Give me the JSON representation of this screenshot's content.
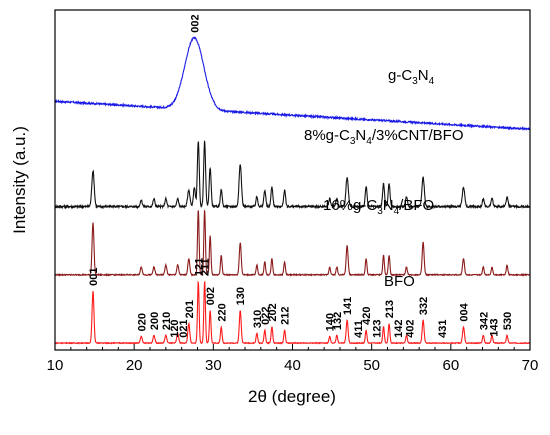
{
  "chart_data": {
    "type": "line",
    "xlabel": "2θ (degree)",
    "ylabel": "Intensity (a.u.)",
    "xlim": [
      10,
      70
    ],
    "x_ticks": [
      10,
      20,
      30,
      40,
      50,
      60,
      70
    ],
    "y_ticks": "none",
    "grid": false,
    "series": [
      {
        "name": "g-C3N4",
        "label_main": "g-C",
        "label_sub1": "3",
        "label_mid": "N",
        "label_sub2": "4",
        "color": "#1a1ae6",
        "offset": 3.2,
        "baseline_start": 0.55,
        "baseline_end": 0.12,
        "noise": 0.025,
        "peaks": [
          [
            27.6,
            1.1,
            1.2
          ]
        ]
      },
      {
        "name": "8%g-C3N4/3%CNT/BFO",
        "label_main": "8%g-C",
        "label_sub1": "3",
        "label_mid": "N",
        "label_sub2": "4",
        "label_tail": "/3%CNT/BFO",
        "color": "#111111",
        "offset": 2.1,
        "baseline_start": 0.03,
        "baseline_end": 0.03,
        "noise": 0.03,
        "peaks": [
          [
            14.8,
            0.55,
            0.15
          ],
          [
            20.9,
            0.1,
            0.12
          ],
          [
            22.5,
            0.12,
            0.12
          ],
          [
            24.0,
            0.12,
            0.12
          ],
          [
            25.5,
            0.12,
            0.12
          ],
          [
            26.9,
            0.25,
            0.15
          ],
          [
            27.6,
            0.3,
            0.12
          ],
          [
            28.1,
            1.0,
            0.12
          ],
          [
            28.9,
            1.0,
            0.12
          ],
          [
            29.6,
            0.6,
            0.12
          ],
          [
            31.0,
            0.25,
            0.12
          ],
          [
            33.4,
            0.65,
            0.15
          ],
          [
            35.5,
            0.15,
            0.12
          ],
          [
            36.5,
            0.25,
            0.12
          ],
          [
            37.4,
            0.3,
            0.12
          ],
          [
            39.0,
            0.25,
            0.12
          ],
          [
            44.7,
            0.12,
            0.12
          ],
          [
            45.6,
            0.12,
            0.12
          ],
          [
            46.9,
            0.45,
            0.15
          ],
          [
            49.3,
            0.3,
            0.12
          ],
          [
            51.5,
            0.35,
            0.12
          ],
          [
            52.2,
            0.35,
            0.12
          ],
          [
            54.4,
            0.15,
            0.12
          ],
          [
            56.5,
            0.45,
            0.15
          ],
          [
            61.6,
            0.3,
            0.15
          ],
          [
            64.1,
            0.12,
            0.12
          ],
          [
            65.2,
            0.12,
            0.12
          ],
          [
            67.1,
            0.15,
            0.12
          ]
        ]
      },
      {
        "name": "16%g-C3N4/BFO",
        "label_main": "16%g-C",
        "label_sub1": "3",
        "label_mid": "N",
        "label_sub2": "4",
        "label_tail": "/BFO",
        "color": "#8b1a1a",
        "offset": 1.05,
        "baseline_start": 0.03,
        "baseline_end": 0.03,
        "noise": 0.015,
        "peaks": [
          [
            14.8,
            0.8,
            0.12
          ],
          [
            20.9,
            0.12,
            0.12
          ],
          [
            22.5,
            0.12,
            0.12
          ],
          [
            24.0,
            0.15,
            0.12
          ],
          [
            25.5,
            0.15,
            0.12
          ],
          [
            26.9,
            0.25,
            0.12
          ],
          [
            28.1,
            1.0,
            0.1
          ],
          [
            28.9,
            1.0,
            0.1
          ],
          [
            29.6,
            0.6,
            0.1
          ],
          [
            31.0,
            0.3,
            0.1
          ],
          [
            33.4,
            0.5,
            0.12
          ],
          [
            35.5,
            0.15,
            0.1
          ],
          [
            36.5,
            0.2,
            0.1
          ],
          [
            37.4,
            0.25,
            0.1
          ],
          [
            39.0,
            0.2,
            0.1
          ],
          [
            44.7,
            0.12,
            0.1
          ],
          [
            45.6,
            0.12,
            0.1
          ],
          [
            46.9,
            0.45,
            0.12
          ],
          [
            49.3,
            0.25,
            0.1
          ],
          [
            51.5,
            0.3,
            0.1
          ],
          [
            52.2,
            0.3,
            0.1
          ],
          [
            54.4,
            0.12,
            0.1
          ],
          [
            56.5,
            0.5,
            0.12
          ],
          [
            61.6,
            0.25,
            0.12
          ],
          [
            64.1,
            0.12,
            0.1
          ],
          [
            65.2,
            0.12,
            0.1
          ],
          [
            67.1,
            0.15,
            0.1
          ]
        ]
      },
      {
        "name": "BFO",
        "label_main": "BFO",
        "color": "#ff1a1a",
        "offset": 0.0,
        "baseline_start": 0.03,
        "baseline_end": 0.03,
        "noise": 0.012,
        "peaks": [
          [
            14.8,
            0.8,
            0.12
          ],
          [
            20.9,
            0.1,
            0.12
          ],
          [
            22.5,
            0.12,
            0.12
          ],
          [
            24.0,
            0.12,
            0.12
          ],
          [
            25.5,
            0.15,
            0.12
          ],
          [
            26.9,
            0.3,
            0.12
          ],
          [
            28.1,
            0.95,
            0.1
          ],
          [
            28.9,
            0.95,
            0.1
          ],
          [
            29.6,
            0.5,
            0.1
          ],
          [
            31.0,
            0.25,
            0.1
          ],
          [
            33.4,
            0.5,
            0.12
          ],
          [
            35.5,
            0.15,
            0.1
          ],
          [
            36.5,
            0.2,
            0.1
          ],
          [
            37.4,
            0.25,
            0.1
          ],
          [
            39.0,
            0.2,
            0.1
          ],
          [
            44.7,
            0.1,
            0.1
          ],
          [
            45.6,
            0.12,
            0.1
          ],
          [
            46.9,
            0.35,
            0.12
          ],
          [
            49.3,
            0.2,
            0.1
          ],
          [
            51.5,
            0.25,
            0.1
          ],
          [
            52.2,
            0.3,
            0.1
          ],
          [
            54.4,
            0.12,
            0.1
          ],
          [
            56.5,
            0.35,
            0.12
          ],
          [
            61.6,
            0.25,
            0.12
          ],
          [
            64.1,
            0.12,
            0.1
          ],
          [
            65.2,
            0.12,
            0.1
          ],
          [
            67.1,
            0.12,
            0.1
          ]
        ]
      }
    ],
    "peak_labels": [
      {
        "text": "002",
        "x": 27.6,
        "series": "g-C3N4",
        "vertical": true
      },
      {
        "text": "001",
        "x": 14.8,
        "series": "BFO",
        "vertical": true
      },
      {
        "text": "020",
        "x": 20.9,
        "series": "BFO",
        "vertical": true
      },
      {
        "text": "200",
        "x": 22.5,
        "series": "BFO",
        "vertical": true
      },
      {
        "text": "210",
        "x": 24.0,
        "series": "BFO",
        "vertical": true
      },
      {
        "text": "120",
        "x": 25.0,
        "series": "BFO",
        "vertical": true
      },
      {
        "text": "021",
        "x": 26.2,
        "series": "BFO",
        "vertical": true
      },
      {
        "text": "201",
        "x": 26.9,
        "series": "BFO",
        "vertical": true
      },
      {
        "text": "121",
        "x": 28.1,
        "series": "BFO",
        "vertical": true
      },
      {
        "text": "211",
        "x": 28.9,
        "series": "BFO",
        "vertical": true
      },
      {
        "text": "002",
        "x": 29.6,
        "series": "BFO",
        "vertical": true
      },
      {
        "text": "220",
        "x": 31.0,
        "series": "BFO",
        "vertical": true
      },
      {
        "text": "130",
        "x": 33.4,
        "series": "BFO",
        "vertical": true
      },
      {
        "text": "310",
        "x": 35.5,
        "series": "BFO",
        "vertical": true
      },
      {
        "text": "022",
        "x": 36.5,
        "series": "BFO",
        "vertical": true
      },
      {
        "text": "202",
        "x": 37.4,
        "series": "BFO",
        "vertical": true
      },
      {
        "text": "212",
        "x": 39.0,
        "series": "BFO",
        "vertical": true
      },
      {
        "text": "140",
        "x": 44.7,
        "series": "BFO",
        "vertical": true
      },
      {
        "text": "132",
        "x": 45.6,
        "series": "BFO",
        "vertical": true
      },
      {
        "text": "141",
        "x": 46.9,
        "series": "BFO",
        "vertical": true
      },
      {
        "text": "411",
        "x": 48.3,
        "series": "BFO",
        "vertical": true
      },
      {
        "text": "420",
        "x": 49.3,
        "series": "BFO",
        "vertical": true
      },
      {
        "text": "123",
        "x": 50.6,
        "series": "BFO",
        "vertical": true
      },
      {
        "text": "213",
        "x": 52.2,
        "series": "BFO",
        "vertical": true
      },
      {
        "text": "142",
        "x": 53.3,
        "series": "BFO",
        "vertical": true
      },
      {
        "text": "402",
        "x": 54.8,
        "series": "BFO",
        "vertical": true
      },
      {
        "text": "332",
        "x": 56.5,
        "series": "BFO",
        "vertical": true
      },
      {
        "text": "431",
        "x": 58.9,
        "series": "BFO",
        "vertical": true
      },
      {
        "text": "004",
        "x": 61.6,
        "series": "BFO",
        "vertical": true
      },
      {
        "text": "342",
        "x": 64.1,
        "series": "BFO",
        "vertical": true
      },
      {
        "text": "143",
        "x": 65.4,
        "series": "BFO",
        "vertical": true
      },
      {
        "text": "530",
        "x": 67.1,
        "series": "BFO",
        "vertical": true
      }
    ]
  }
}
